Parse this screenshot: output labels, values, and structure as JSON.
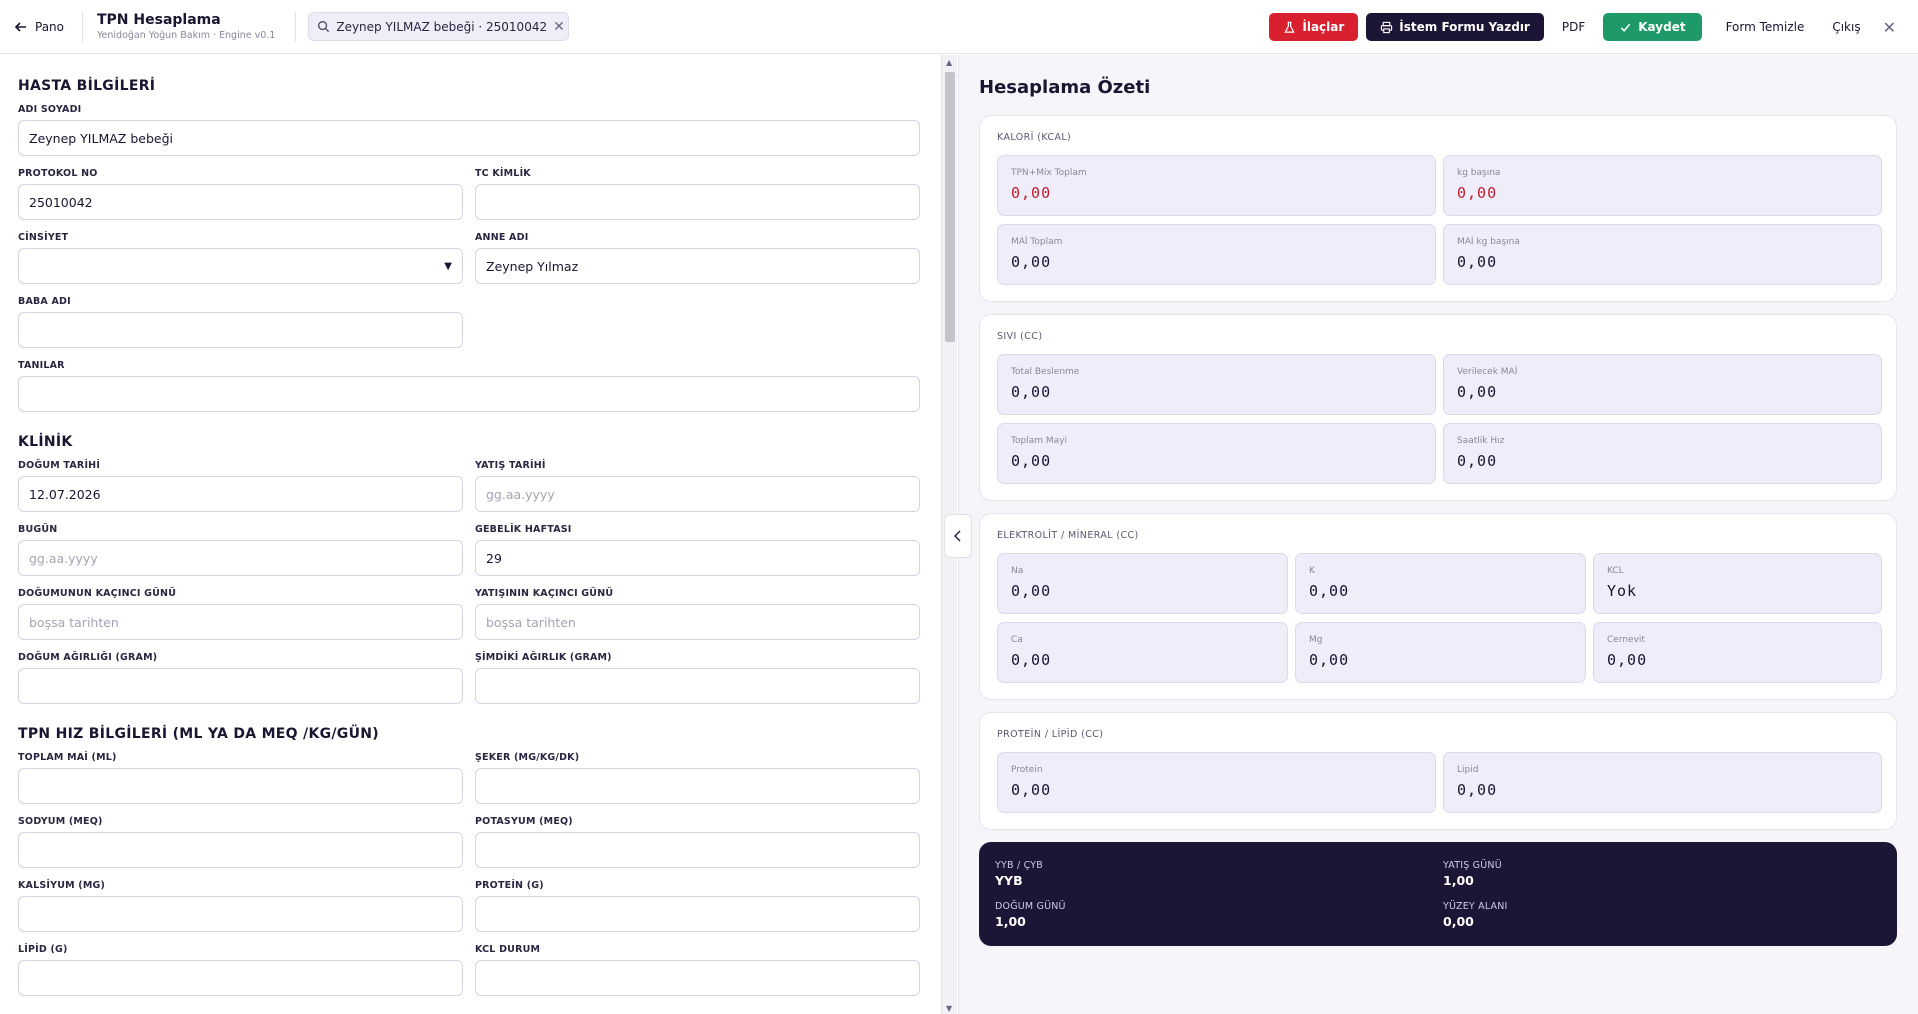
{
  "header": {
    "back_label": "Pano",
    "title": "TPN Hesaplama",
    "subtitle": "Yenidoğan Yoğun Bakım · Engine v0.1",
    "patient_chip": "Zeynep YILMAZ bebeği · 25010042",
    "buttons": {
      "ilaclar": "İlaçlar",
      "istem": "İstem Formu Yazdır",
      "pdf": "PDF",
      "kaydet": "Kaydet",
      "form_temizle": "Form Temizle",
      "cikis": "Çıkış"
    },
    "colors": {
      "red": "#d8202e",
      "navy": "#1d1535",
      "green": "#1d9a68"
    }
  },
  "form": {
    "hasta": {
      "title": "HASTA BİLGİLERİ",
      "adi_soyadi_label": "ADI SOYADI",
      "adi_soyadi_value": "Zeynep YILMAZ bebeği",
      "protokol_label": "PROTOKOL NO",
      "protokol_value": "25010042",
      "tc_label": "TC KİMLİK",
      "tc_value": "",
      "cinsiyet_label": "CİNSİYET",
      "cinsiyet_value": "",
      "anne_label": "ANNE ADI",
      "anne_value": "Zeynep Yılmaz",
      "baba_label": "BABA ADI",
      "baba_value": "",
      "tanilar_label": "TANILAR",
      "tanilar_value": ""
    },
    "klinik": {
      "title": "KLİNİK",
      "dogum_tarihi_label": "DOĞUM TARİHİ",
      "dogum_tarihi_value": "12.07.2026",
      "yatis_tarihi_label": "YATIŞ TARİHİ",
      "yatis_tarihi_placeholder": "gg.aa.yyyy",
      "bugun_label": "BUGÜN",
      "bugun_placeholder": "gg.aa.yyyy",
      "gebelik_label": "GEBELİK HAFTASI",
      "gebelik_value": "29",
      "dogum_gunu_label": "DOĞUMUNUN KAÇINCI GÜNÜ",
      "dogum_gunu_placeholder": "boşsa tarihten",
      "yatis_gunu_label": "YATIŞININ KAÇINCI GÜNÜ",
      "yatis_gunu_placeholder": "boşsa tarihten",
      "dogum_agirligi_label": "DOĞUM AĞIRLIĞI (GRAM)",
      "simdiki_agirlik_label": "ŞİMDİKİ AĞIRLIK (GRAM)"
    },
    "tpn": {
      "title": "TPN HIZ BİLGİLERİ (ML YA DA MEQ /KG/GÜN)",
      "toplam_mai_label": "TOPLAM MAİ (ML)",
      "seker_label": "ŞEKER (MG/KG/DK)",
      "sodyum_label": "SODYUM (MEQ)",
      "potasyum_label": "POTASYUM (MEQ)",
      "kalsiyum_label": "KALSİYUM (MG)",
      "protein_label": "PROTEİN (G)",
      "lipid_label": "LİPİD (G)",
      "kcl_label": "KCL DURUM"
    }
  },
  "summary": {
    "title": "Hesaplama Özeti",
    "kalori": {
      "title": "KALORİ (KCAL)",
      "tiles": [
        {
          "label": "TPN+Mix Toplam",
          "value": "0,00"
        },
        {
          "label": "kg başına",
          "value": "0,00"
        },
        {
          "label": "MAİ Toplam",
          "value": "0,00"
        },
        {
          "label": "MAİ kg başına",
          "value": "0,00"
        }
      ]
    },
    "sivi": {
      "title": "SIVI (CC)",
      "tiles": [
        {
          "label": "Total Beslenme",
          "value": "0,00"
        },
        {
          "label": "Verilecek MAİ",
          "value": "0,00"
        },
        {
          "label": "Toplam Mayi",
          "value": "0,00"
        },
        {
          "label": "Saatlik Hız",
          "value": "0,00"
        }
      ]
    },
    "elektrolit": {
      "title": "ELEKTROLİT / MİNERAL (CC)",
      "tiles": [
        {
          "label": "Na",
          "value": "0,00"
        },
        {
          "label": "K",
          "value": "0,00"
        },
        {
          "label": "KCL",
          "value": "Yok"
        },
        {
          "label": "Ca",
          "value": "0,00"
        },
        {
          "label": "Mg",
          "value": "0,00"
        },
        {
          "label": "Cernevit",
          "value": "0,00"
        }
      ]
    },
    "protein": {
      "title": "PROTEİN / LİPİD (CC)",
      "tiles": [
        {
          "label": "Protein",
          "value": "0,00"
        },
        {
          "label": "Lipid",
          "value": "0,00"
        }
      ]
    },
    "footer": {
      "yyb_label": "YYB / ÇYB",
      "yyb_value": "YYB",
      "yatis_label": "YATIŞ GÜNÜ",
      "yatis_value": "1,00",
      "dogum_label": "DOĞUM GÜNÜ",
      "dogum_value": "1,00",
      "yuzey_label": "YÜZEY ALANI",
      "yuzey_value": "0,00"
    }
  }
}
